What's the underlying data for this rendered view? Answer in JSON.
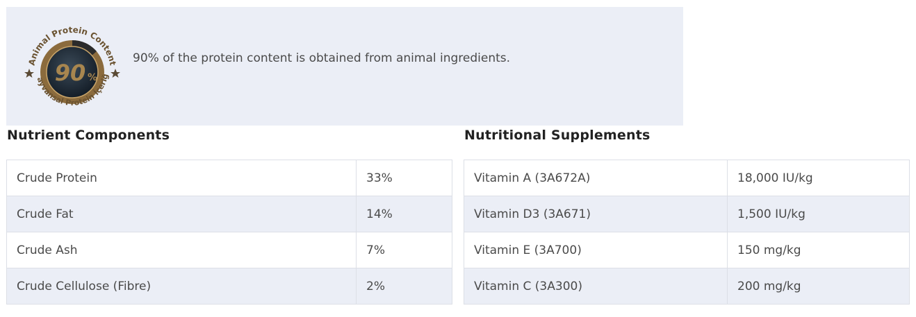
{
  "banner": {
    "badge": {
      "top_text": "Animal Protein Content",
      "value": "90",
      "unit": "%",
      "bottom_text": "Hayvansal Protein İçeriği",
      "star_icon": "star-icon"
    },
    "description": "90% of the protein content is obtained from animal ingredients."
  },
  "nutrient_components": {
    "title": "Nutrient Components",
    "rows": [
      {
        "name": "Crude Protein",
        "value": "33%"
      },
      {
        "name": "Crude Fat",
        "value": "14%"
      },
      {
        "name": "Crude Ash",
        "value": "7%"
      },
      {
        "name": "Crude Cellulose (Fibre)",
        "value": "2%"
      }
    ]
  },
  "nutritional_supplements": {
    "title": "Nutritional Supplements",
    "rows": [
      {
        "name": "Vitamin A (3A672A)",
        "value": "18,000 IU/kg"
      },
      {
        "name": "Vitamin D3 (3A671)",
        "value": "1,500 IU/kg"
      },
      {
        "name": "Vitamin E (3A700)",
        "value": "150 mg/kg"
      },
      {
        "name": "Vitamin C (3A300)",
        "value": "200 mg/kg"
      }
    ]
  },
  "colors": {
    "badge_brown": "#8b6b3d",
    "badge_dark": "#1f2d3a",
    "banner_bg": "#ebeef6",
    "alt_row_bg": "#ebeef6"
  }
}
